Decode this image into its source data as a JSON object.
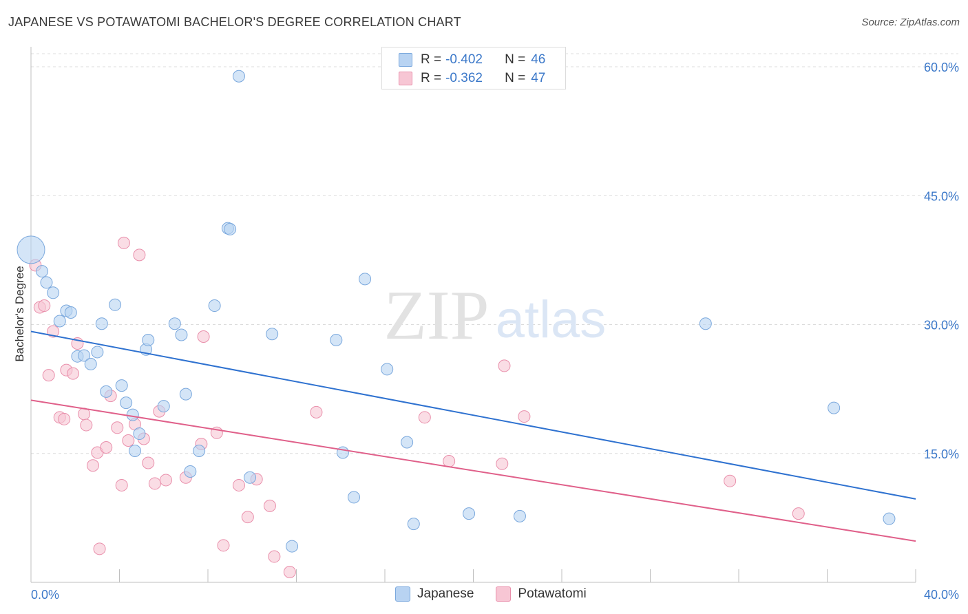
{
  "title": "JAPANESE VS POTAWATOMI BACHELOR'S DEGREE CORRELATION CHART",
  "source": "Source: ZipAtlas.com",
  "watermark": {
    "zip": "ZIP",
    "atlas": "atlas"
  },
  "legend": {
    "r_label": "R =",
    "n_label": "N =",
    "series": [
      {
        "name": "Japanese",
        "r": "-0.402",
        "n": "46"
      },
      {
        "name": "Potawatomi",
        "r": "-0.362",
        "n": "47"
      }
    ]
  },
  "colors": {
    "japanese_fill": "#b8d3f2",
    "japanese_stroke": "#7aa8dd",
    "japanese_line": "#2f72d0",
    "potawatomi_fill": "#f7c6d4",
    "potawatomi_stroke": "#e98fab",
    "potawatomi_line": "#e0608a",
    "tick_label": "#3b78c9",
    "grid": "#dcdcdc"
  },
  "chart_data": {
    "type": "scatter",
    "title": "JAPANESE VS POTAWATOMI BACHELOR'S DEGREE CORRELATION CHART",
    "xlabel": "",
    "ylabel": "Bachelor's Degree",
    "xlim": [
      0,
      40
    ],
    "ylim": [
      0,
      60
    ],
    "x_tick_labels": [
      "0.0%",
      "40.0%"
    ],
    "y_ticks": [
      15,
      30,
      45,
      60
    ],
    "y_tick_labels": [
      "15.0%",
      "30.0%",
      "45.0%",
      "60.0%"
    ],
    "series": [
      {
        "name": "Japanese",
        "trend": {
          "x": [
            0,
            40
          ],
          "y": [
            29.2,
            9.7
          ]
        },
        "points": [
          {
            "x": 0.0,
            "y": 38.7,
            "big": true
          },
          {
            "x": 0.5,
            "y": 36.2
          },
          {
            "x": 0.7,
            "y": 34.9
          },
          {
            "x": 1.0,
            "y": 33.7
          },
          {
            "x": 1.3,
            "y": 30.4
          },
          {
            "x": 1.6,
            "y": 31.6
          },
          {
            "x": 1.8,
            "y": 31.4
          },
          {
            "x": 2.1,
            "y": 26.3
          },
          {
            "x": 2.4,
            "y": 26.4
          },
          {
            "x": 2.7,
            "y": 25.4
          },
          {
            "x": 3.0,
            "y": 26.8
          },
          {
            "x": 3.2,
            "y": 30.1
          },
          {
            "x": 3.4,
            "y": 22.2
          },
          {
            "x": 3.8,
            "y": 32.3
          },
          {
            "x": 4.1,
            "y": 22.9
          },
          {
            "x": 4.3,
            "y": 20.9
          },
          {
            "x": 4.6,
            "y": 19.5
          },
          {
            "x": 4.7,
            "y": 15.3
          },
          {
            "x": 4.9,
            "y": 17.3
          },
          {
            "x": 5.2,
            "y": 27.1
          },
          {
            "x": 5.3,
            "y": 28.2
          },
          {
            "x": 6.0,
            "y": 20.5
          },
          {
            "x": 6.5,
            "y": 30.1
          },
          {
            "x": 6.8,
            "y": 28.8
          },
          {
            "x": 7.0,
            "y": 21.9
          },
          {
            "x": 7.2,
            "y": 12.9
          },
          {
            "x": 7.6,
            "y": 15.3
          },
          {
            "x": 8.3,
            "y": 32.2
          },
          {
            "x": 8.9,
            "y": 41.2
          },
          {
            "x": 9.0,
            "y": 41.1
          },
          {
            "x": 9.4,
            "y": 58.9
          },
          {
            "x": 9.9,
            "y": 12.2
          },
          {
            "x": 10.9,
            "y": 28.9
          },
          {
            "x": 11.8,
            "y": 4.2
          },
          {
            "x": 13.8,
            "y": 28.2
          },
          {
            "x": 14.1,
            "y": 15.1
          },
          {
            "x": 14.6,
            "y": 9.9
          },
          {
            "x": 15.1,
            "y": 35.3
          },
          {
            "x": 16.1,
            "y": 24.8
          },
          {
            "x": 17.0,
            "y": 16.3
          },
          {
            "x": 17.3,
            "y": 6.8
          },
          {
            "x": 19.8,
            "y": 8.0
          },
          {
            "x": 22.1,
            "y": 7.7
          },
          {
            "x": 30.5,
            "y": 30.1
          },
          {
            "x": 36.3,
            "y": 20.3
          },
          {
            "x": 38.8,
            "y": 7.4
          }
        ]
      },
      {
        "name": "Potawatomi",
        "trend": {
          "x": [
            0,
            40
          ],
          "y": [
            21.2,
            4.8
          ]
        },
        "points": [
          {
            "x": 0.2,
            "y": 36.9
          },
          {
            "x": 0.4,
            "y": 32.0
          },
          {
            "x": 0.6,
            "y": 32.2
          },
          {
            "x": 0.8,
            "y": 24.1
          },
          {
            "x": 1.0,
            "y": 29.2
          },
          {
            "x": 1.3,
            "y": 19.2
          },
          {
            "x": 1.5,
            "y": 19.0
          },
          {
            "x": 1.6,
            "y": 24.7
          },
          {
            "x": 1.9,
            "y": 24.3
          },
          {
            "x": 2.1,
            "y": 27.8
          },
          {
            "x": 2.4,
            "y": 19.6
          },
          {
            "x": 2.5,
            "y": 18.3
          },
          {
            "x": 2.8,
            "y": 13.6
          },
          {
            "x": 3.0,
            "y": 15.1
          },
          {
            "x": 3.1,
            "y": 3.9
          },
          {
            "x": 3.4,
            "y": 15.7
          },
          {
            "x": 3.6,
            "y": 21.7
          },
          {
            "x": 3.9,
            "y": 18.0
          },
          {
            "x": 4.1,
            "y": 11.3
          },
          {
            "x": 4.2,
            "y": 39.5
          },
          {
            "x": 4.4,
            "y": 16.5
          },
          {
            "x": 4.7,
            "y": 18.4
          },
          {
            "x": 4.9,
            "y": 38.1
          },
          {
            "x": 5.1,
            "y": 16.7
          },
          {
            "x": 5.3,
            "y": 13.9
          },
          {
            "x": 5.6,
            "y": 11.5
          },
          {
            "x": 5.8,
            "y": 19.9
          },
          {
            "x": 6.1,
            "y": 11.9
          },
          {
            "x": 7.0,
            "y": 12.2
          },
          {
            "x": 7.7,
            "y": 16.1
          },
          {
            "x": 7.8,
            "y": 28.6
          },
          {
            "x": 8.4,
            "y": 17.4
          },
          {
            "x": 8.7,
            "y": 4.3
          },
          {
            "x": 9.4,
            "y": 11.3
          },
          {
            "x": 9.8,
            "y": 7.6
          },
          {
            "x": 10.2,
            "y": 12.0
          },
          {
            "x": 10.8,
            "y": 8.9
          },
          {
            "x": 11.0,
            "y": 3.0
          },
          {
            "x": 11.7,
            "y": 1.2
          },
          {
            "x": 12.9,
            "y": 19.8
          },
          {
            "x": 17.8,
            "y": 19.2
          },
          {
            "x": 18.9,
            "y": 14.1
          },
          {
            "x": 21.3,
            "y": 13.8
          },
          {
            "x": 21.4,
            "y": 25.2
          },
          {
            "x": 22.3,
            "y": 19.3
          },
          {
            "x": 31.6,
            "y": 11.8
          },
          {
            "x": 34.7,
            "y": 8.0
          }
        ]
      }
    ]
  }
}
